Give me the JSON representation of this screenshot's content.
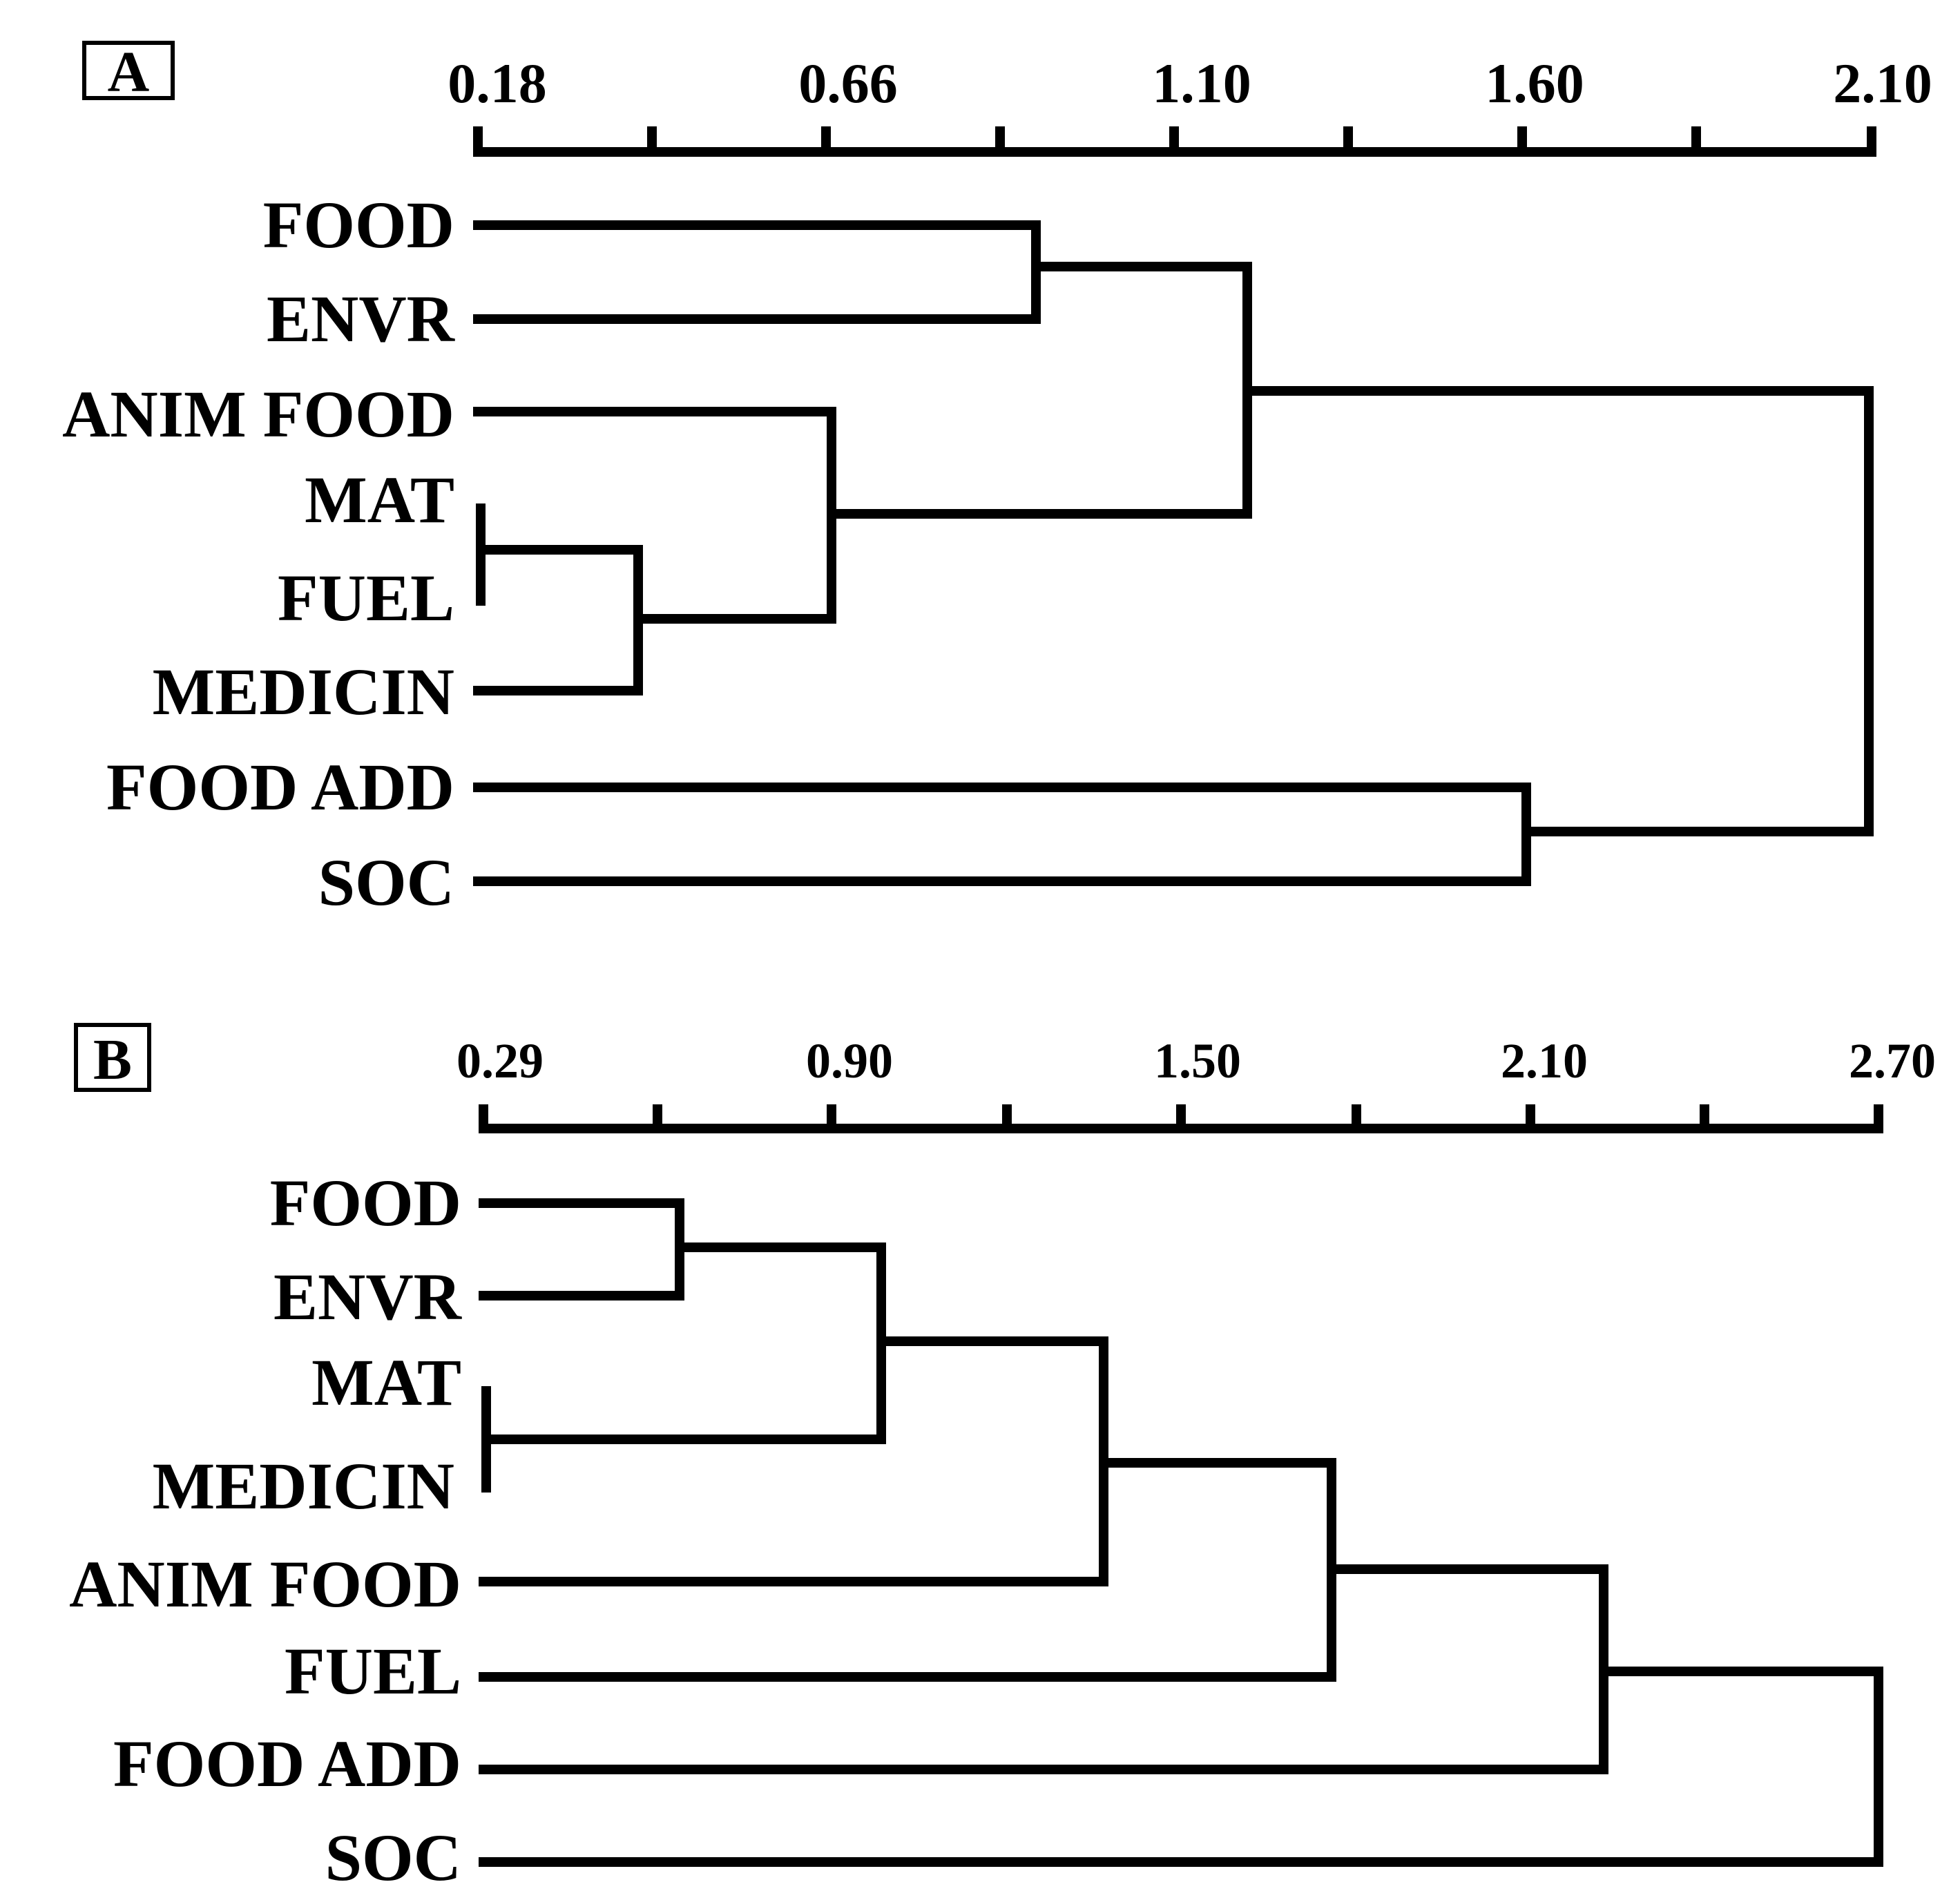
{
  "panels": [
    {
      "id": "A",
      "label": "A",
      "axis_ticks": [
        "0.18",
        "0.66",
        "1.10",
        "1.60",
        "2.10"
      ],
      "leaves": [
        "FOOD",
        "ENVR",
        "ANIM FOOD",
        "MAT",
        "FUEL",
        "MEDICIN",
        "FOOD ADD",
        "SOC"
      ]
    },
    {
      "id": "B",
      "label": "B",
      "axis_ticks": [
        "0.29",
        "0.90",
        "1.50",
        "2.10",
        "2.70"
      ],
      "leaves": [
        "FOOD",
        "ENVR",
        "MAT",
        "MEDICIN",
        "ANIM FOOD",
        "FUEL",
        "FOOD ADD",
        "SOC"
      ]
    }
  ],
  "chart_data": [
    {
      "type": "dendrogram",
      "panel": "A",
      "xlim": [
        0.18,
        2.1
      ],
      "leaf_order": [
        "FOOD",
        "ENVR",
        "ANIM FOOD",
        "MAT",
        "FUEL",
        "MEDICIN",
        "FOOD ADD",
        "SOC"
      ],
      "merges": [
        {
          "members": [
            "MAT",
            "FUEL"
          ],
          "height": 0.18
        },
        {
          "members": [
            "MAT+FUEL",
            "MEDICIN"
          ],
          "height": 0.41
        },
        {
          "members": [
            "ANIM FOOD",
            "MAT+FUEL+MEDICIN"
          ],
          "height": 0.67
        },
        {
          "members": [
            "FOOD",
            "ENVR"
          ],
          "height": 0.95
        },
        {
          "members": [
            "FOOD+ENVR",
            "ANIM FOOD+MAT+FUEL+MEDICIN"
          ],
          "height": 1.25
        },
        {
          "members": [
            "FOOD ADD",
            "SOC"
          ],
          "height": 1.62
        },
        {
          "members": [
            "FOOD+ENVR+ANIM FOOD+MAT+FUEL+MEDICIN",
            "FOOD ADD+SOC"
          ],
          "height": 2.1
        }
      ]
    },
    {
      "type": "dendrogram",
      "panel": "B",
      "xlim": [
        0.29,
        2.7
      ],
      "leaf_order": [
        "FOOD",
        "ENVR",
        "MAT",
        "MEDICIN",
        "ANIM FOOD",
        "FUEL",
        "FOOD ADD",
        "SOC"
      ],
      "merges": [
        {
          "members": [
            "MAT",
            "MEDICIN"
          ],
          "height": 0.29
        },
        {
          "members": [
            "FOOD",
            "ENVR"
          ],
          "height": 0.63
        },
        {
          "members": [
            "FOOD+ENVR",
            "MAT+MEDICIN"
          ],
          "height": 0.97
        },
        {
          "members": [
            "FOOD+ENVR+MAT+MEDICIN",
            "ANIM FOOD"
          ],
          "height": 1.35
        },
        {
          "members": [
            "FOOD+ENVR+MAT+MEDICIN+ANIM FOOD",
            "FUEL"
          ],
          "height": 1.74
        },
        {
          "members": [
            "FOOD+ENVR+MAT+MEDICIN+ANIM FOOD+FUEL",
            "FOOD ADD"
          ],
          "height": 2.2
        },
        {
          "members": [
            "FOOD+ENVR+MAT+MEDICIN+ANIM FOOD+FUEL+FOOD ADD",
            "SOC"
          ],
          "height": 2.7
        }
      ]
    }
  ]
}
